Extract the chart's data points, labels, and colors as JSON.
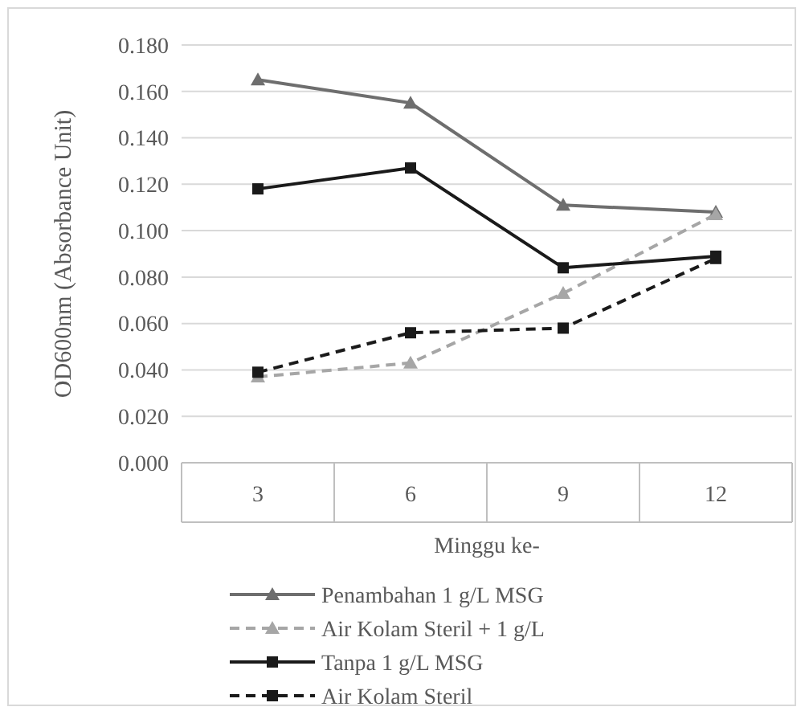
{
  "chart_data": {
    "type": "line",
    "xlabel": "Minggu ke-",
    "ylabel": "OD600nm (Absorbance Unit)",
    "categories": [
      "3",
      "6",
      "9",
      "12"
    ],
    "series": [
      {
        "name": "Penambahan 1 g/L MSG",
        "color": "#6e6e6e",
        "values": [
          0.165,
          0.155,
          0.111,
          0.108
        ],
        "marker": "triangle",
        "line_style": "solid"
      },
      {
        "name": "Air Kolam Steril + 1 g/L",
        "color": "#a6a6a6",
        "values": [
          0.037,
          0.043,
          0.073,
          0.107
        ],
        "marker": "triangle",
        "line_style": "dashed"
      },
      {
        "name": "Tanpa 1 g/L MSG",
        "color": "#1a1a1a",
        "values": [
          0.118,
          0.127,
          0.084,
          0.089
        ],
        "marker": "square",
        "line_style": "solid"
      },
      {
        "name": "Air Kolam Steril",
        "color": "#1a1a1a",
        "values": [
          0.039,
          0.056,
          0.058,
          0.088
        ],
        "marker": "square",
        "line_style": "dashed"
      }
    ],
    "ylim": [
      0,
      0.18
    ],
    "yticks": [
      {
        "value": 0,
        "label": "0.000"
      },
      {
        "value": 0.02,
        "label": "0.020"
      },
      {
        "value": 0.04,
        "label": "0.040"
      },
      {
        "value": 0.06,
        "label": "0.060"
      },
      {
        "value": 0.08,
        "label": "0.080"
      },
      {
        "value": 0.1,
        "label": "0.100"
      },
      {
        "value": 0.12,
        "label": "0.120"
      },
      {
        "value": 0.14,
        "label": "0.140"
      },
      {
        "value": 0.16,
        "label": "0.160"
      },
      {
        "value": 0.18,
        "label": "0.180"
      }
    ],
    "grid": "y",
    "legend": "bottom"
  }
}
